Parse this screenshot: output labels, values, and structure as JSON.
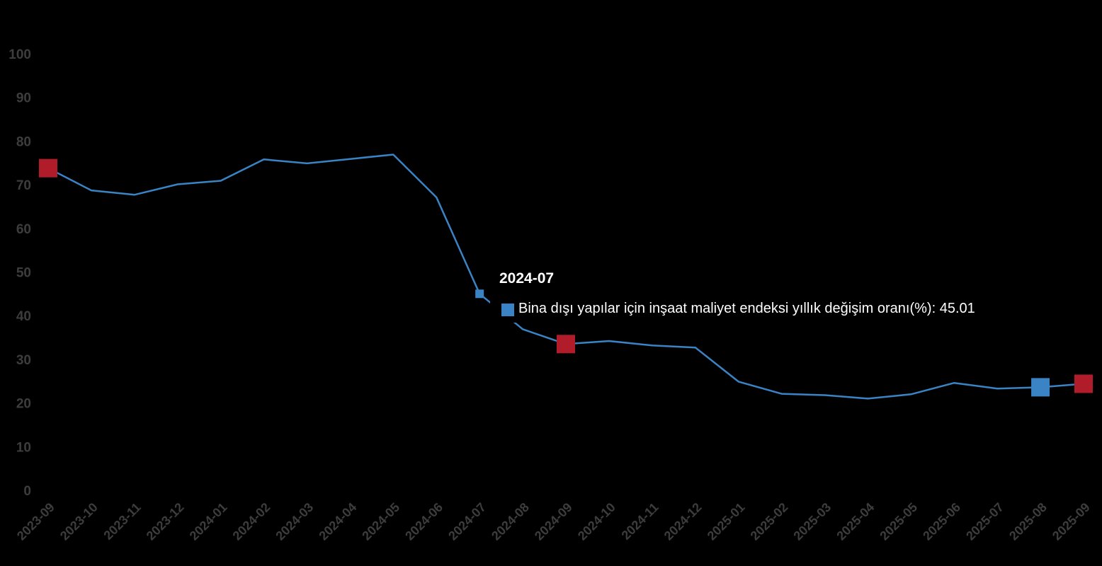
{
  "colors": {
    "background": "#000000",
    "line": "#3a83c4",
    "highlight_marker": "#b01c2a",
    "hover_marker": "#3a83c4",
    "axis_text": "#3d3d3d",
    "tooltip_text": "#ffffff"
  },
  "chart_data": {
    "type": "line",
    "title": "",
    "xlabel": "",
    "ylabel": "",
    "ylim": [
      0,
      100
    ],
    "y_ticks": [
      "0",
      "10",
      "20",
      "30",
      "40",
      "50",
      "60",
      "70",
      "80",
      "90",
      "100"
    ],
    "grid": false,
    "legend": "none",
    "categories": [
      "2023-09",
      "2023-10",
      "2023-11",
      "2023-12",
      "2024-01",
      "2024-02",
      "2024-03",
      "2024-04",
      "2024-05",
      "2024-06",
      "2024-07",
      "2024-08",
      "2024-09",
      "2024-10",
      "2024-11",
      "2024-12",
      "2025-01",
      "2025-02",
      "2025-03",
      "2025-04",
      "2025-05",
      "2025-06",
      "2025-07",
      "2025-08",
      "2025-09"
    ],
    "series": [
      {
        "name": "Bina dışı yapılar için inşaat maliyet endeksi yıllık değişim oranı(%)",
        "values": [
          73.8,
          68.7,
          67.7,
          70.1,
          70.9,
          75.8,
          74.9,
          75.9,
          76.9,
          67.1,
          45.01,
          36.9,
          33.5,
          34.2,
          33.2,
          32.7,
          24.9,
          22.1,
          21.8,
          21.0,
          22.0,
          24.6,
          23.3,
          23.6,
          24.4
        ]
      }
    ],
    "highlighted_points": [
      0,
      12,
      24
    ],
    "hover_marker_points": [
      23
    ],
    "active_index": 10
  },
  "tooltip": {
    "title": "2024-07",
    "series_label": "Bina dışı yapılar için inşaat maliyet endeksi yıllık değişim oranı(%)",
    "separator": ": ",
    "value": "45.01"
  }
}
